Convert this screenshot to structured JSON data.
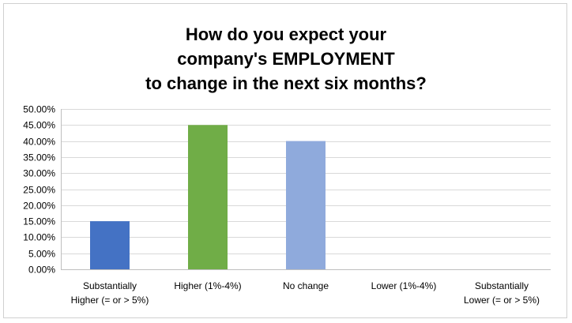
{
  "chart_data": {
    "type": "bar",
    "title_lines": [
      "How do you expect your",
      "company's EMPLOYMENT",
      "to change in the next six months?"
    ],
    "categories": [
      [
        "Substantially",
        "Higher (= or > 5%)"
      ],
      [
        "Higher (1%-4%)"
      ],
      [
        "No change"
      ],
      [
        "Lower (1%-4%)"
      ],
      [
        "Substantially",
        "Lower (= or > 5%)"
      ]
    ],
    "values": [
      15,
      45,
      40,
      0,
      0
    ],
    "bar_colors": [
      "#4472c4",
      "#70ad47",
      "#8faadc",
      "#a5a5a5",
      "#ffc000"
    ],
    "ylim": [
      0,
      50
    ],
    "ytick_step": 5,
    "ytick_labels": [
      "0.00%",
      "5.00%",
      "10.00%",
      "15.00%",
      "20.00%",
      "25.00%",
      "30.00%",
      "35.00%",
      "40.00%",
      "45.00%",
      "50.00%"
    ],
    "grid": true,
    "legend": "none"
  }
}
